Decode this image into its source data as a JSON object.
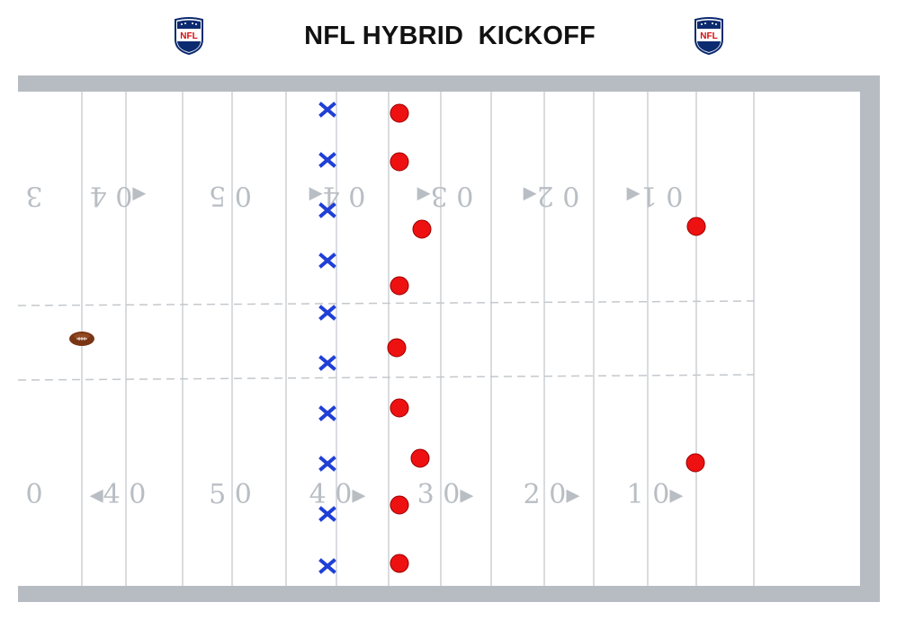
{
  "header": {
    "title": "NFL HYBRID  KICKOFF",
    "logo_text": "NFL",
    "logo_icon": "nfl-shield-icon"
  },
  "field": {
    "colors": {
      "border": "#b7bbc2",
      "turf": "#ffffff",
      "yard_line": "#d9dcdf",
      "numbers": "#b9bec4",
      "hash": "#c4c8cc"
    },
    "top_numbers": [
      "3",
      "◂0 4",
      "0 5",
      "0 4◂",
      "0 3◂",
      "0 2◂",
      "0 1◂"
    ],
    "bottom_numbers": [
      "0",
      "◂4 0",
      "5 0",
      "4 0▸",
      "3 0▸",
      "2 0▸",
      "1 0▸"
    ]
  },
  "players": {
    "kicking_team": {
      "marker": "X",
      "color": "#1f3fd6",
      "count": 10
    },
    "receiving_team": {
      "marker": "circle",
      "color": "#ee1111",
      "count": 11
    },
    "ball": {
      "icon": "football-icon",
      "color": "#7a3514"
    }
  }
}
